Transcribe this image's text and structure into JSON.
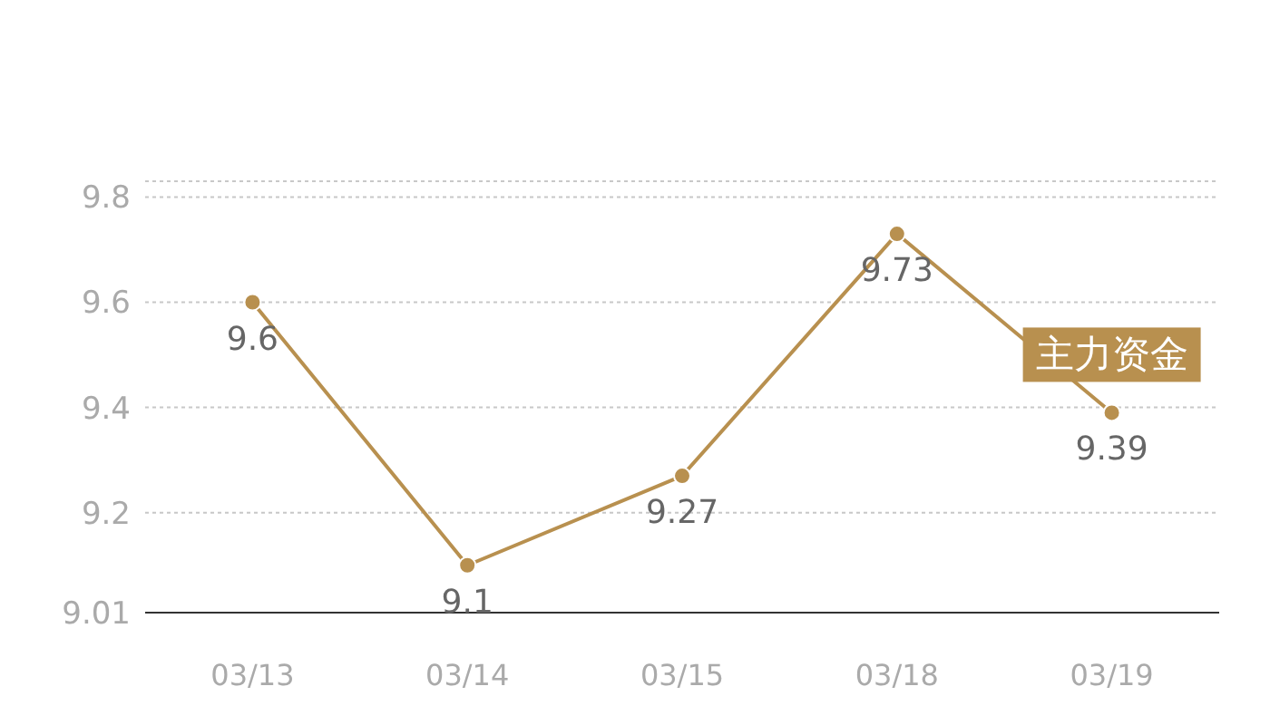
{
  "chart_data": {
    "type": "line",
    "categories": [
      "03/13",
      "03/14",
      "03/15",
      "03/18",
      "03/19"
    ],
    "series": [
      {
        "color": "#b8904f",
        "values": [
          9.6,
          9.1,
          9.27,
          9.73,
          9.39
        ]
      }
    ],
    "ylim": [
      9.01,
      9.83
    ],
    "yticks": [
      9.01,
      9.2,
      9.4,
      9.6,
      9.8,
      {
        "value": 9.83,
        "label": null
      }
    ],
    "grid": "y",
    "marker": "circle",
    "line_style": "solid",
    "data_labels": true,
    "annotations": [
      {
        "text": "主力资金",
        "x": "03/19",
        "y": 9.39
      }
    ]
  }
}
